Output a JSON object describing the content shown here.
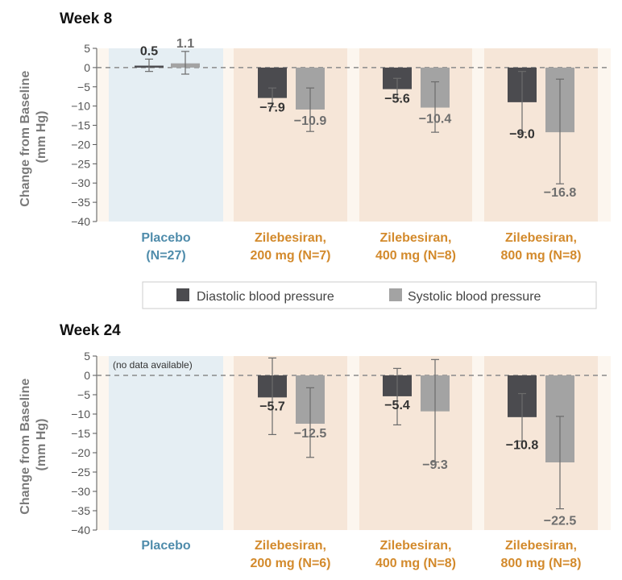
{
  "legend": {
    "diastolic_label": "Diastolic blood pressure",
    "systolic_label": "Systolic blood pressure"
  },
  "colors": {
    "diastolic_bar": "#4b4b4f",
    "systolic_bar": "#a3a3a3",
    "placebo_band": "#e5eef3",
    "drug_band": "#f6e6d8",
    "outer_band": "#fcf6ef",
    "placebo_text": "#4f8cab",
    "drug_text": "#d38a2c"
  },
  "chart_data": [
    {
      "type": "bar",
      "title": "Week 8",
      "ylabel": "Change from Baseline (mm Hg)",
      "ylim": [
        -40,
        5
      ],
      "yticks": [
        "5",
        "0",
        "-5",
        "-10",
        "-15",
        "-20",
        "-25",
        "-30",
        "-35",
        "-40"
      ],
      "categories": [
        {
          "line1": "Placebo",
          "line2": "(N=27)",
          "group": "placebo"
        },
        {
          "line1": "Zilebesiran,",
          "line2": "200 mg (N=7)",
          "group": "drug"
        },
        {
          "line1": "Zilebesiran,",
          "line2": "400 mg (N=8)",
          "group": "drug"
        },
        {
          "line1": "Zilebesiran,",
          "line2": "800 mg (N=8)",
          "group": "drug"
        }
      ],
      "series": [
        {
          "name": "Diastolic blood pressure",
          "values": [
            0.5,
            -7.9,
            -5.6,
            -9.0
          ],
          "value_labels": [
            "0.5",
            "−7.9",
            "−5.6",
            "−9.0"
          ],
          "error_low": [
            -1.0,
            -10.2,
            -8.0,
            -16.8
          ],
          "error_high": [
            2.2,
            -5.3,
            -2.8,
            -1.0
          ]
        },
        {
          "name": "Systolic blood pressure",
          "values": [
            1.1,
            -10.9,
            -10.4,
            -16.8
          ],
          "value_labels": [
            "1.1",
            "−10.9",
            "−10.4",
            "−16.8"
          ],
          "error_low": [
            -1.7,
            -16.6,
            -16.8,
            -30.2
          ],
          "error_high": [
            4.2,
            -5.3,
            -3.7,
            -3.0
          ]
        }
      ],
      "note": ""
    },
    {
      "type": "bar",
      "title": "Week 24",
      "ylabel": "Change from Baseline (mm Hg)",
      "ylim": [
        -40,
        5
      ],
      "yticks": [
        "5",
        "0",
        "-5",
        "-10",
        "-15",
        "-20",
        "-25",
        "-30",
        "-35",
        "-40"
      ],
      "categories": [
        {
          "line1": "Placebo",
          "line2": "",
          "group": "placebo"
        },
        {
          "line1": "Zilebesiran,",
          "line2": "200 mg (N=6)",
          "group": "drug"
        },
        {
          "line1": "Zilebesiran,",
          "line2": "400 mg (N=8)",
          "group": "drug"
        },
        {
          "line1": "Zilebesiran,",
          "line2": "800 mg (N=8)",
          "group": "drug"
        }
      ],
      "series": [
        {
          "name": "Diastolic blood pressure",
          "values": [
            null,
            -5.7,
            -5.4,
            -10.8
          ],
          "value_labels": [
            "",
            "−5.7",
            "−5.4",
            "−10.8"
          ],
          "error_low": [
            null,
            -15.3,
            -12.8,
            -17.0
          ],
          "error_high": [
            null,
            4.5,
            1.8,
            -4.7
          ]
        },
        {
          "name": "Systolic blood pressure",
          "values": [
            null,
            -12.5,
            -9.3,
            -22.5
          ],
          "value_labels": [
            "",
            "−12.5",
            "−9.3",
            "−22.5"
          ],
          "error_low": [
            null,
            -21.2,
            -22.4,
            -34.5
          ],
          "error_high": [
            null,
            -3.2,
            4.1,
            -10.6
          ]
        }
      ],
      "note": "(no data available)"
    }
  ]
}
